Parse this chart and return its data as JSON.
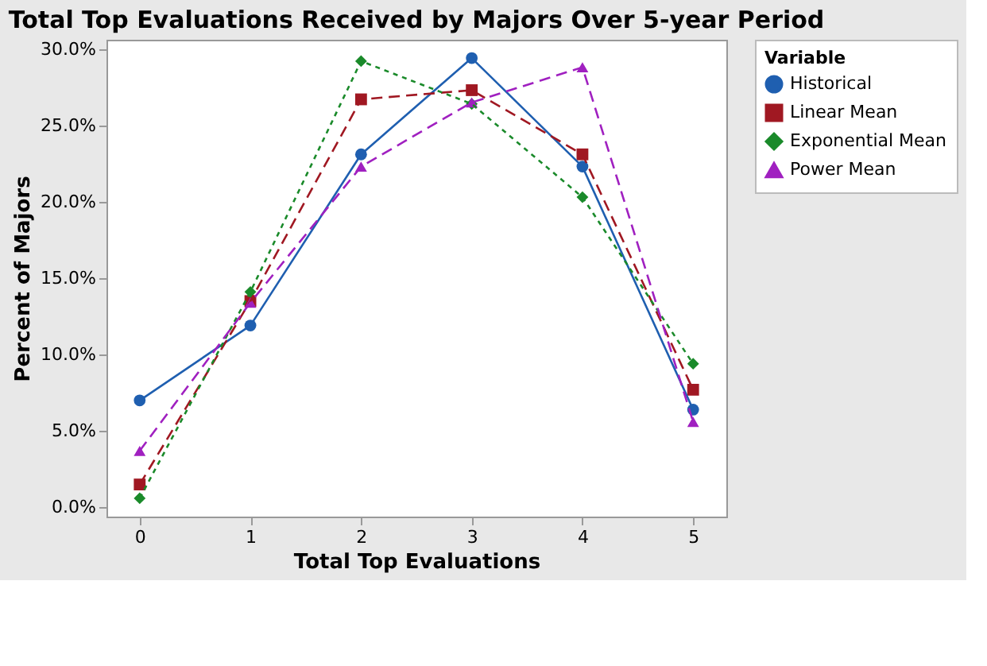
{
  "chart_data": {
    "type": "line",
    "title": "Total Top Evaluations Received by Majors Over 5-year Period",
    "xlabel": "Total Top Evaluations",
    "ylabel": "Percent of Majors",
    "legend_title": "Variable",
    "x": [
      0,
      1,
      2,
      3,
      4,
      5
    ],
    "xlim": [
      -0.3,
      5.3
    ],
    "xticks": [
      0,
      1,
      2,
      3,
      4,
      5
    ],
    "ylim": [
      -0.6,
      30.6
    ],
    "yticks": [
      {
        "value": 0,
        "label": "0.0%"
      },
      {
        "value": 5,
        "label": "5.0%"
      },
      {
        "value": 10,
        "label": "10.0%"
      },
      {
        "value": 15,
        "label": "15.0%"
      },
      {
        "value": 20,
        "label": "20.0%"
      },
      {
        "value": 25,
        "label": "25.0%"
      },
      {
        "value": 30,
        "label": "30.0%"
      }
    ],
    "grid": false,
    "legend": "top right",
    "series": [
      {
        "name": "Historical",
        "color": "#1f5fb0",
        "marker": "circle",
        "line_style": "solid",
        "values": [
          7.0,
          11.9,
          23.1,
          29.4,
          22.3,
          6.4
        ]
      },
      {
        "name": "Linear Mean",
        "color": "#a01822",
        "marker": "square",
        "line_style": "dashed",
        "values": [
          1.5,
          13.5,
          26.7,
          27.3,
          23.1,
          7.7
        ]
      },
      {
        "name": "Exponential Mean",
        "color": "#1a8a2a",
        "marker": "diamond",
        "line_style": "dotted",
        "values": [
          0.6,
          14.1,
          29.2,
          26.4,
          20.3,
          9.4
        ]
      },
      {
        "name": "Power Mean",
        "color": "#a020c0",
        "marker": "triangle",
        "line_style": "dashed",
        "values": [
          3.7,
          13.4,
          22.3,
          26.5,
          28.8,
          5.6
        ]
      }
    ]
  }
}
